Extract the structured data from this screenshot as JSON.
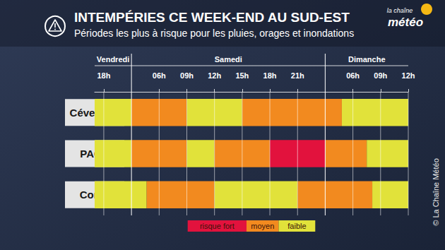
{
  "chart_data": {
    "type": "timeline",
    "title": "INTEMPÉRIES CE WEEK-END AU SUD-EST",
    "subtitle": "Périodes les plus à risque pour les pluies, orages et inondations",
    "brand": [
      "la chaîne",
      "météo"
    ],
    "source": "© La Chaîne Météo",
    "xlim": [
      -0.33,
      11
    ],
    "xticks": [
      {
        "value": 0,
        "label": "18h"
      },
      {
        "value": 2,
        "label": "06h"
      },
      {
        "value": 3,
        "label": "09h"
      },
      {
        "value": 4,
        "label": "12h"
      },
      {
        "value": 5,
        "label": "15h"
      },
      {
        "value": 6,
        "label": "18h"
      },
      {
        "value": 7,
        "label": "21h"
      },
      {
        "value": 9,
        "label": "06h"
      },
      {
        "value": 10,
        "label": "09h"
      },
      {
        "value": 11,
        "label": "12h"
      }
    ],
    "days": [
      {
        "label": "Vendredi",
        "start": -0.33,
        "end": 1
      },
      {
        "label": "Samedi",
        "start": 1,
        "end": 8
      },
      {
        "label": "Dimanche",
        "start": 8,
        "end": 11
      }
    ],
    "levels": [
      {
        "name": "risque fort",
        "color": "#e2123d"
      },
      {
        "name": "moyen",
        "color": "#f28a1f"
      },
      {
        "name": "faible",
        "color": "#e1e23a"
      }
    ],
    "categories": [
      "Cévennes",
      "PACA",
      "Corse"
    ],
    "rows": [
      {
        "name": "Cévennes",
        "segments": [
          {
            "start": -0.33,
            "end": 1,
            "level": "faible"
          },
          {
            "start": 1,
            "end": 3,
            "level": "moyen"
          },
          {
            "start": 3,
            "end": 5,
            "level": "faible"
          },
          {
            "start": 5,
            "end": 8.6,
            "level": "moyen"
          },
          {
            "start": 8.6,
            "end": 11,
            "level": "faible"
          }
        ]
      },
      {
        "name": "PACA",
        "segments": [
          {
            "start": -0.33,
            "end": 1,
            "level": "faible"
          },
          {
            "start": 1,
            "end": 3,
            "level": "moyen"
          },
          {
            "start": 3,
            "end": 4,
            "level": "faible"
          },
          {
            "start": 4,
            "end": 6,
            "level": "moyen"
          },
          {
            "start": 6,
            "end": 8,
            "level": "risque fort"
          },
          {
            "start": 8,
            "end": 9.5,
            "level": "moyen"
          },
          {
            "start": 9.5,
            "end": 11,
            "level": "faible"
          }
        ]
      },
      {
        "name": "Corse",
        "segments": [
          {
            "start": -0.33,
            "end": 1.55,
            "level": "faible"
          },
          {
            "start": 1.55,
            "end": 4,
            "level": "moyen"
          },
          {
            "start": 4,
            "end": 7,
            "level": "faible"
          },
          {
            "start": 7,
            "end": 9.7,
            "level": "moyen"
          },
          {
            "start": 9.7,
            "end": 11,
            "level": "faible"
          }
        ]
      }
    ],
    "legend": "bottom",
    "grid": true
  }
}
